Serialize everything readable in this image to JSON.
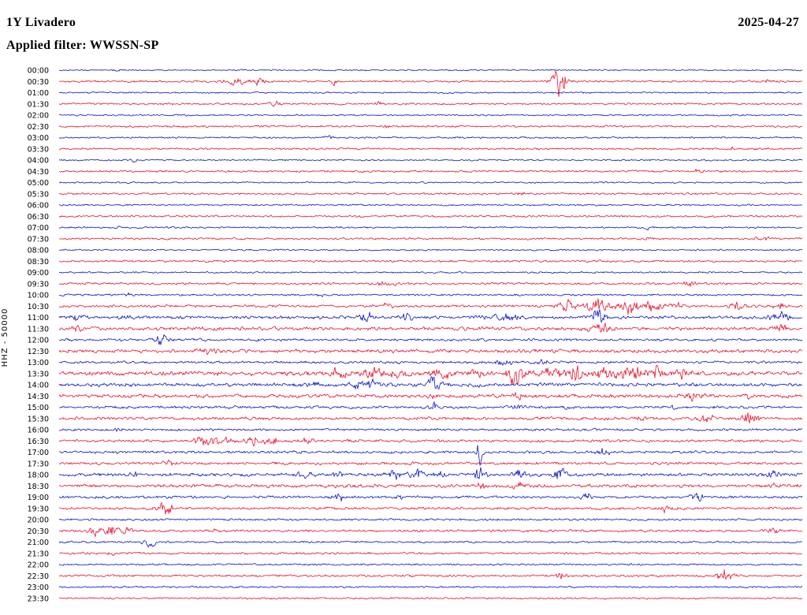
{
  "header": {
    "station": "1Y Livadero",
    "date": "2025-04-27",
    "filter": "Applied filter: WWSSN-SP"
  },
  "plot": {
    "y_axis_label": "HHZ - 50000"
  },
  "colors": {
    "red": "#e8112d",
    "blue": "#0a14c8",
    "background": "#ffffff",
    "text": "#000000"
  },
  "chart_data": {
    "type": "helicorder",
    "title": "1Y Livadero",
    "date": "2025-04-27",
    "filter": "WWSSN-SP",
    "channel_scale": "HHZ - 50000",
    "row_duration_minutes": 30,
    "events_format": "[x_fraction_of_row, amplitude_px, gaussian_width_fraction]",
    "rows": [
      {
        "label": "00:00",
        "color": "blue",
        "noise": 0.7,
        "events": [
          [
            0.077,
            1.6,
            0.004
          ]
        ]
      },
      {
        "label": "00:30",
        "color": "red",
        "noise": 1.0,
        "events": [
          [
            0.244,
            3.5,
            0.012
          ],
          [
            0.27,
            2.5,
            0.005
          ],
          [
            0.371,
            5,
            0.003
          ],
          [
            0.673,
            15,
            0.006
          ],
          [
            0.954,
            1.8,
            0.004
          ]
        ]
      },
      {
        "label": "01:00",
        "color": "blue",
        "noise": 0.8,
        "events": []
      },
      {
        "label": "01:30",
        "color": "red",
        "noise": 1.0,
        "events": [
          [
            0.292,
            3,
            0.006
          ],
          [
            0.43,
            1.5,
            0.004
          ]
        ]
      },
      {
        "label": "02:00",
        "color": "blue",
        "noise": 0.8,
        "events": []
      },
      {
        "label": "02:30",
        "color": "red",
        "noise": 1.0,
        "events": [
          [
            0.44,
            1.4,
            0.004
          ]
        ]
      },
      {
        "label": "03:00",
        "color": "blue",
        "noise": 0.85,
        "events": [
          [
            0.366,
            2,
            0.005
          ]
        ]
      },
      {
        "label": "03:30",
        "color": "red",
        "noise": 1.0,
        "events": [
          [
            0.907,
            1.7,
            0.004
          ]
        ]
      },
      {
        "label": "04:00",
        "color": "blue",
        "noise": 0.8,
        "events": [
          [
            0.1,
            1.4,
            0.003
          ]
        ]
      },
      {
        "label": "04:30",
        "color": "red",
        "noise": 1.0,
        "events": [
          [
            0.859,
            1.8,
            0.004
          ]
        ]
      },
      {
        "label": "05:00",
        "color": "blue",
        "noise": 0.8,
        "events": []
      },
      {
        "label": "05:30",
        "color": "red",
        "noise": 1.0,
        "events": [
          [
            0.62,
            1.8,
            0.004
          ]
        ]
      },
      {
        "label": "06:00",
        "color": "blue",
        "noise": 0.8,
        "events": []
      },
      {
        "label": "06:30",
        "color": "red",
        "noise": 1.0,
        "events": []
      },
      {
        "label": "07:00",
        "color": "blue",
        "noise": 0.85,
        "events": [
          [
            0.08,
            1.4,
            0.003
          ],
          [
            0.79,
            1.4,
            0.003
          ]
        ]
      },
      {
        "label": "07:30",
        "color": "red",
        "noise": 1.0,
        "events": [
          [
            0.79,
            1.8,
            0.004
          ],
          [
            0.95,
            1.6,
            0.008
          ]
        ]
      },
      {
        "label": "08:00",
        "color": "blue",
        "noise": 0.8,
        "events": []
      },
      {
        "label": "08:30",
        "color": "red",
        "noise": 1.0,
        "events": []
      },
      {
        "label": "09:00",
        "color": "blue",
        "noise": 0.85,
        "events": []
      },
      {
        "label": "09:30",
        "color": "red",
        "noise": 1.1,
        "events": [
          [
            0.44,
            3,
            0.01
          ],
          [
            0.848,
            3,
            0.006
          ]
        ]
      },
      {
        "label": "10:00",
        "color": "blue",
        "noise": 1.0,
        "events": [
          [
            0.095,
            2,
            0.005
          ],
          [
            0.35,
            1.4,
            0.004
          ]
        ]
      },
      {
        "label": "10:30",
        "color": "red",
        "noise": 1.3,
        "events": [
          [
            0.44,
            3,
            0.006
          ],
          [
            0.684,
            7,
            0.008
          ],
          [
            0.726,
            8,
            0.01
          ],
          [
            0.769,
            7,
            0.01
          ],
          [
            0.801,
            5,
            0.008
          ],
          [
            0.832,
            4,
            0.006
          ],
          [
            0.912,
            3.5,
            0.008
          ],
          [
            0.97,
            3.5,
            0.006
          ]
        ]
      },
      {
        "label": "11:00",
        "color": "blue",
        "noise": 1.6,
        "events": [
          [
            0.021,
            3,
            0.006
          ],
          [
            0.09,
            2.5,
            0.005
          ],
          [
            0.414,
            5,
            0.006
          ],
          [
            0.467,
            5,
            0.005
          ],
          [
            0.599,
            3,
            0.015
          ],
          [
            0.726,
            9,
            0.006
          ],
          [
            0.97,
            6,
            0.008
          ]
        ]
      },
      {
        "label": "11:30",
        "color": "red",
        "noise": 1.8,
        "events": [
          [
            0.021,
            5,
            0.006
          ],
          [
            0.726,
            5,
            0.01
          ],
          [
            0.97,
            3.5,
            0.008
          ]
        ]
      },
      {
        "label": "12:00",
        "color": "blue",
        "noise": 1.2,
        "events": [
          [
            0.138,
            6,
            0.006
          ],
          [
            0.19,
            2,
            0.004
          ]
        ]
      },
      {
        "label": "12:30",
        "color": "red",
        "noise": 1.8,
        "events": [
          [
            0.2,
            2.5,
            0.01
          ]
        ]
      },
      {
        "label": "13:00",
        "color": "blue",
        "noise": 1.3,
        "events": [
          [
            0.6,
            2.5,
            0.008
          ],
          [
            0.65,
            2,
            0.006
          ]
        ]
      },
      {
        "label": "13:30",
        "color": "red",
        "noise": 2.2,
        "events": [
          [
            0.376,
            5,
            0.008
          ],
          [
            0.419,
            4,
            0.01
          ],
          [
            0.455,
            4,
            0.012
          ],
          [
            0.514,
            4,
            0.01
          ],
          [
            0.557,
            3.5,
            0.008
          ],
          [
            0.615,
            12,
            0.008
          ],
          [
            0.663,
            6,
            0.008
          ],
          [
            0.695,
            7,
            0.008
          ],
          [
            0.737,
            8,
            0.009
          ],
          [
            0.769,
            9,
            0.008
          ],
          [
            0.801,
            6,
            0.008
          ],
          [
            0.84,
            4,
            0.008
          ]
        ]
      },
      {
        "label": "14:00",
        "color": "blue",
        "noise": 1.8,
        "events": [
          [
            0.339,
            5,
            0.006
          ],
          [
            0.403,
            4,
            0.008
          ],
          [
            0.42,
            3.5,
            0.005
          ],
          [
            0.504,
            10,
            0.006
          ],
          [
            0.56,
            2.5,
            0.005
          ]
        ]
      },
      {
        "label": "14:30",
        "color": "red",
        "noise": 1.8,
        "events": [
          [
            0.504,
            3,
            0.004
          ],
          [
            0.62,
            2.5,
            0.006
          ],
          [
            0.854,
            3,
            0.008
          ],
          [
            0.93,
            2,
            0.006
          ]
        ]
      },
      {
        "label": "15:00",
        "color": "blue",
        "noise": 1.4,
        "events": [
          [
            0.504,
            4.5,
            0.003
          ],
          [
            0.615,
            2.5,
            0.005
          ],
          [
            0.684,
            2.5,
            0.005
          ],
          [
            0.827,
            3.5,
            0.003
          ]
        ]
      },
      {
        "label": "15:30",
        "color": "red",
        "noise": 1.5,
        "events": [
          [
            0.784,
            2.5,
            0.005
          ],
          [
            0.87,
            3,
            0.008
          ],
          [
            0.928,
            5.5,
            0.008
          ]
        ]
      },
      {
        "label": "16:00",
        "color": "blue",
        "noise": 1.2,
        "events": [
          [
            0.08,
            1.4,
            0.003
          ]
        ]
      },
      {
        "label": "16:30",
        "color": "red",
        "noise": 1.4,
        "events": [
          [
            0.191,
            4.5,
            0.006
          ],
          [
            0.207,
            5,
            0.005
          ],
          [
            0.223,
            4,
            0.006
          ],
          [
            0.26,
            4.5,
            0.007
          ],
          [
            0.286,
            3.5,
            0.008
          ],
          [
            0.33,
            2,
            0.01
          ]
        ]
      },
      {
        "label": "17:00",
        "color": "blue",
        "noise": 1.3,
        "events": [
          [
            0.567,
            12,
            0.0035
          ],
          [
            0.732,
            4,
            0.006
          ]
        ]
      },
      {
        "label": "17:30",
        "color": "red",
        "noise": 1.4,
        "events": [
          [
            0.148,
            3,
            0.005
          ]
        ]
      },
      {
        "label": "18:00",
        "color": "blue",
        "noise": 1.6,
        "events": [
          [
            0.1,
            2.5,
            0.005
          ],
          [
            0.329,
            3.5,
            0.006
          ],
          [
            0.376,
            3,
            0.005
          ],
          [
            0.451,
            3.5,
            0.006
          ],
          [
            0.483,
            4.5,
            0.007
          ],
          [
            0.51,
            3.5,
            0.005
          ],
          [
            0.567,
            11,
            0.0045
          ],
          [
            0.62,
            4.5,
            0.006
          ],
          [
            0.673,
            5.5,
            0.006
          ],
          [
            0.96,
            3,
            0.005
          ]
        ]
      },
      {
        "label": "18:30",
        "color": "red",
        "noise": 1.7,
        "events": [
          [
            0.567,
            2.5,
            0.005
          ],
          [
            0.62,
            3.5,
            0.006
          ],
          [
            0.96,
            2,
            0.005
          ]
        ]
      },
      {
        "label": "19:00",
        "color": "blue",
        "noise": 1.4,
        "events": [
          [
            0.376,
            4.5,
            0.005
          ],
          [
            0.461,
            2,
            0.004
          ],
          [
            0.71,
            3,
            0.005
          ],
          [
            0.859,
            4.5,
            0.006
          ]
        ]
      },
      {
        "label": "19:30",
        "color": "red",
        "noise": 1.3,
        "events": [
          [
            0.143,
            6.5,
            0.006
          ],
          [
            0.817,
            3,
            0.006
          ]
        ]
      },
      {
        "label": "20:00",
        "color": "blue",
        "noise": 1.1,
        "events": []
      },
      {
        "label": "20:30",
        "color": "red",
        "noise": 1.2,
        "events": [
          [
            0.048,
            5,
            0.005
          ],
          [
            0.069,
            5.5,
            0.006
          ],
          [
            0.09,
            4.5,
            0.005
          ],
          [
            0.212,
            3,
            0.004
          ],
          [
            0.96,
            3.5,
            0.006
          ]
        ]
      },
      {
        "label": "21:00",
        "color": "blue",
        "noise": 1.0,
        "events": [
          [
            0.122,
            5,
            0.006
          ]
        ]
      },
      {
        "label": "21:30",
        "color": "red",
        "noise": 1.1,
        "events": [
          [
            0.07,
            2,
            0.004
          ]
        ]
      },
      {
        "label": "22:00",
        "color": "blue",
        "noise": 0.9,
        "events": []
      },
      {
        "label": "22:30",
        "color": "red",
        "noise": 1.1,
        "events": [
          [
            0.673,
            3.5,
            0.007
          ],
          [
            0.896,
            6.5,
            0.009
          ]
        ]
      },
      {
        "label": "23:00",
        "color": "blue",
        "noise": 0.9,
        "events": []
      },
      {
        "label": "23:30",
        "color": "red",
        "noise": 0.9,
        "events": []
      }
    ]
  }
}
